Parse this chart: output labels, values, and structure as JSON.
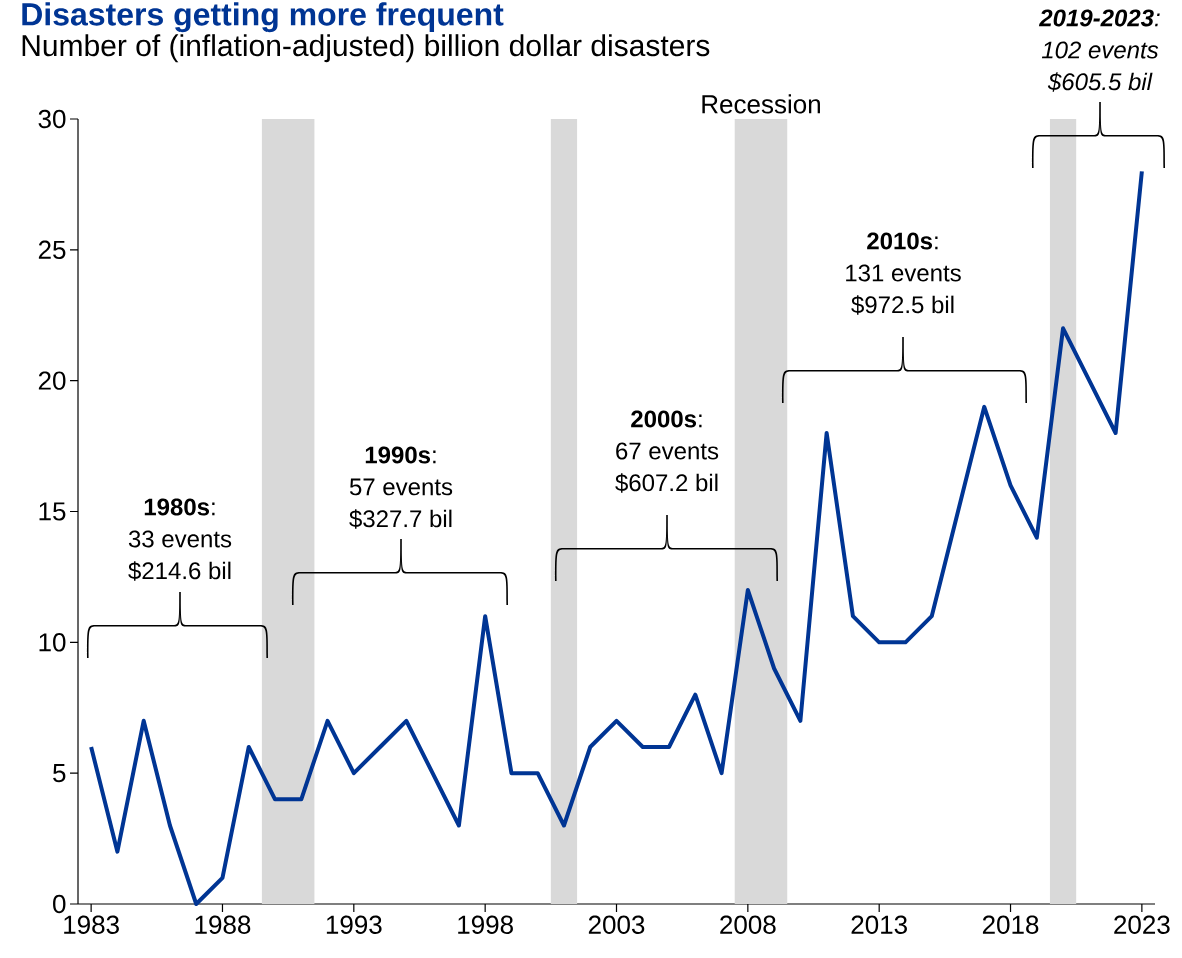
{
  "chart_data": {
    "type": "line",
    "title": "Disasters getting more frequent",
    "subtitle": "Number of (inflation-adjusted) billion dollar disasters",
    "x": [
      1983,
      1984,
      1985,
      1986,
      1987,
      1988,
      1989,
      1990,
      1991,
      1992,
      1993,
      1994,
      1995,
      1996,
      1997,
      1998,
      1999,
      2000,
      2001,
      2002,
      2003,
      2004,
      2005,
      2006,
      2007,
      2008,
      2009,
      2010,
      2011,
      2012,
      2013,
      2014,
      2015,
      2016,
      2017,
      2018,
      2019,
      2020,
      2021,
      2022,
      2023
    ],
    "series": [
      {
        "color": "#003594",
        "values": [
          6,
          2,
          7,
          3,
          0,
          1,
          6,
          4,
          4,
          7,
          5,
          6,
          7,
          5,
          3,
          11,
          5,
          5,
          3,
          6,
          7,
          6,
          6,
          8,
          5,
          12,
          9,
          7,
          18,
          11,
          10,
          10,
          11,
          15,
          19,
          16,
          14,
          22,
          20,
          18,
          28
        ]
      }
    ],
    "xlim": [
      1982.5,
      2023.5
    ],
    "xticks": [
      1983,
      1988,
      1993,
      1998,
      2003,
      2008,
      2013,
      2018,
      2023
    ],
    "ylim": [
      0,
      30
    ],
    "yticks": [
      0,
      5,
      10,
      15,
      20,
      25,
      30
    ],
    "bands": [
      {
        "axis": "x",
        "from": 1989.5,
        "to": 1991.5,
        "label": null,
        "color": "#d9d9d9"
      },
      {
        "axis": "x",
        "from": 2000.5,
        "to": 2001.5,
        "label": null,
        "color": "#d9d9d9"
      },
      {
        "axis": "x",
        "from": 2007.5,
        "to": 2009.5,
        "label": "Recession",
        "color": "#d9d9d9"
      },
      {
        "axis": "x",
        "from": 2019.5,
        "to": 2020.5,
        "label": null,
        "color": "#d9d9d9"
      }
    ],
    "annotations": [
      "**1980s**:",
      "33 events",
      "$214.6 bil",
      "**1990s**:",
      "57 events",
      "$327.7 bil",
      "**2000s**:",
      "67 events",
      "$607.2 bil",
      "**2010s**:",
      "131 events",
      "$972.5 bil",
      "**2019-2023**:",
      "102 events",
      "$605.5 bil"
    ],
    "grid": false,
    "marker": "none",
    "line_style": "solid"
  }
}
